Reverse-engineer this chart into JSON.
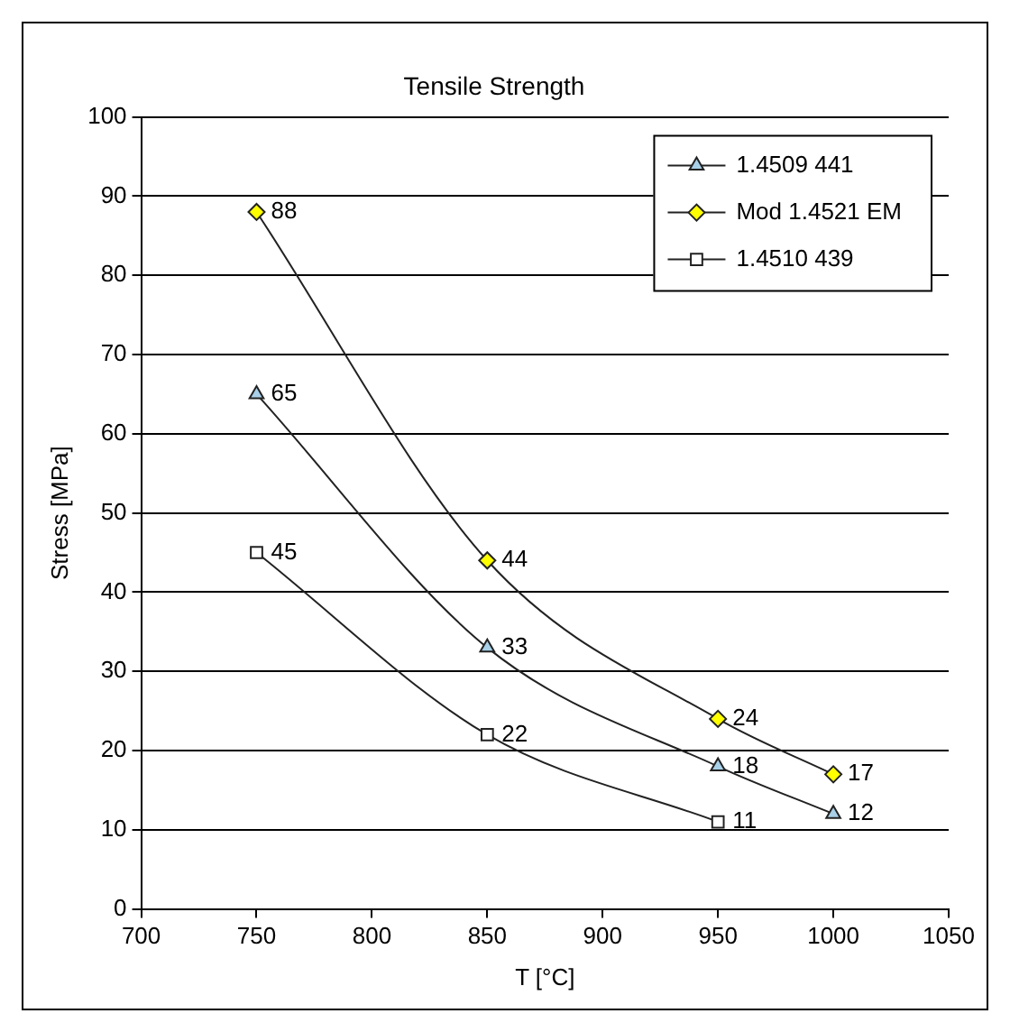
{
  "chart_data": {
    "type": "line",
    "title": "Tensile Strength",
    "xlabel": "T [°C]",
    "ylabel": "Stress [MPa]",
    "xlim": [
      700,
      1050
    ],
    "xticks": [
      700,
      750,
      800,
      850,
      900,
      950,
      1000,
      1050
    ],
    "ylim": [
      0,
      100
    ],
    "yticks": [
      0,
      10,
      20,
      30,
      40,
      50,
      60,
      70,
      80,
      90,
      100
    ],
    "grid": "y",
    "legend": "top right",
    "data_labels": true,
    "series": [
      {
        "name": "1.4509 441",
        "color": "#222222",
        "colors": [
          "#a8d0e8",
          "#a8d0e8",
          "#a8d0e8",
          "#a8d0e8"
        ],
        "marker": "triangle",
        "x": [
          750,
          850,
          950,
          1000
        ],
        "values": [
          65,
          33,
          18,
          12
        ]
      },
      {
        "name": "Mod 1.4521 EM",
        "color": "#222222",
        "colors": [
          "#ffff00",
          "#ffff00",
          "#ffff00",
          "#ffff00"
        ],
        "marker": "diamond",
        "x": [
          750,
          850,
          950,
          1000
        ],
        "values": [
          88,
          44,
          24,
          17
        ]
      },
      {
        "name": "1.4510 439",
        "color": "#222222",
        "colors": [
          "#ffffff",
          "#ffffff",
          "#ffffff"
        ],
        "marker": "square",
        "x": [
          750,
          850,
          950
        ],
        "values": [
          45,
          22,
          11
        ]
      }
    ]
  }
}
